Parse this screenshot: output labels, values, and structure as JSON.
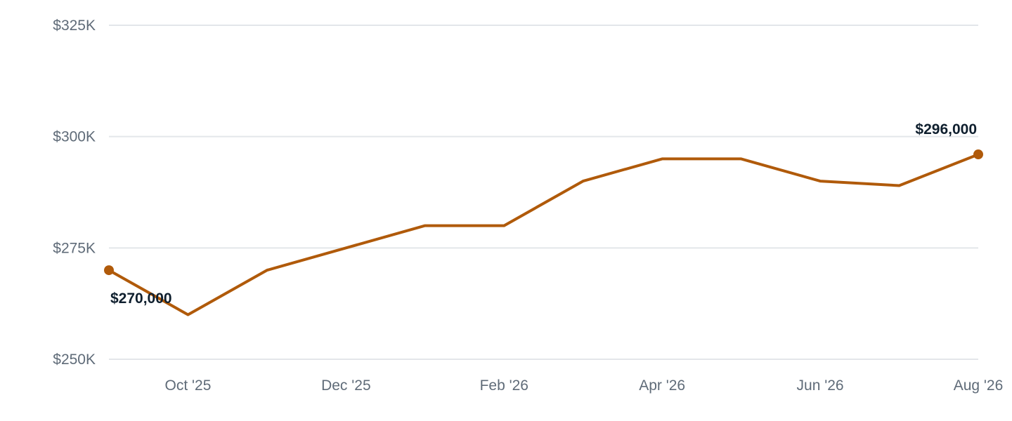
{
  "chart_data": {
    "type": "line",
    "title": "",
    "xlabel": "",
    "ylabel": "",
    "x": [
      "Sep '25",
      "Oct '25",
      "Nov '25",
      "Dec '25",
      "Jan '26",
      "Feb '26",
      "Mar '26",
      "Apr '26",
      "May '26",
      "Jun '26",
      "Jul '26",
      "Aug '26"
    ],
    "series": [
      {
        "values": [
          270000,
          260000,
          270000,
          275000,
          280000,
          280000,
          290000,
          295000,
          295000,
          290000,
          289000,
          296000
        ]
      }
    ],
    "ylim": [
      250000,
      325000
    ],
    "yticks": [
      250000,
      275000,
      300000,
      325000
    ],
    "ytick_labels": [
      "$250K",
      "$275K",
      "$300K",
      "$325K"
    ],
    "xticks": [
      "Oct '25",
      "Dec '25",
      "Feb '26",
      "Apr '26",
      "Jun '26",
      "Aug '26"
    ],
    "annotations": [
      {
        "x": "Sep '25",
        "value": 270000,
        "text": "$270,000"
      },
      {
        "x": "Aug '26",
        "value": 296000,
        "text": "$296,000"
      }
    ],
    "grid": true,
    "legend": "none",
    "line_color": "#b05a0a",
    "grid_color": "#e3e6ea",
    "tick_color": "#5f6b78",
    "label_color": "#0f1f2e"
  }
}
